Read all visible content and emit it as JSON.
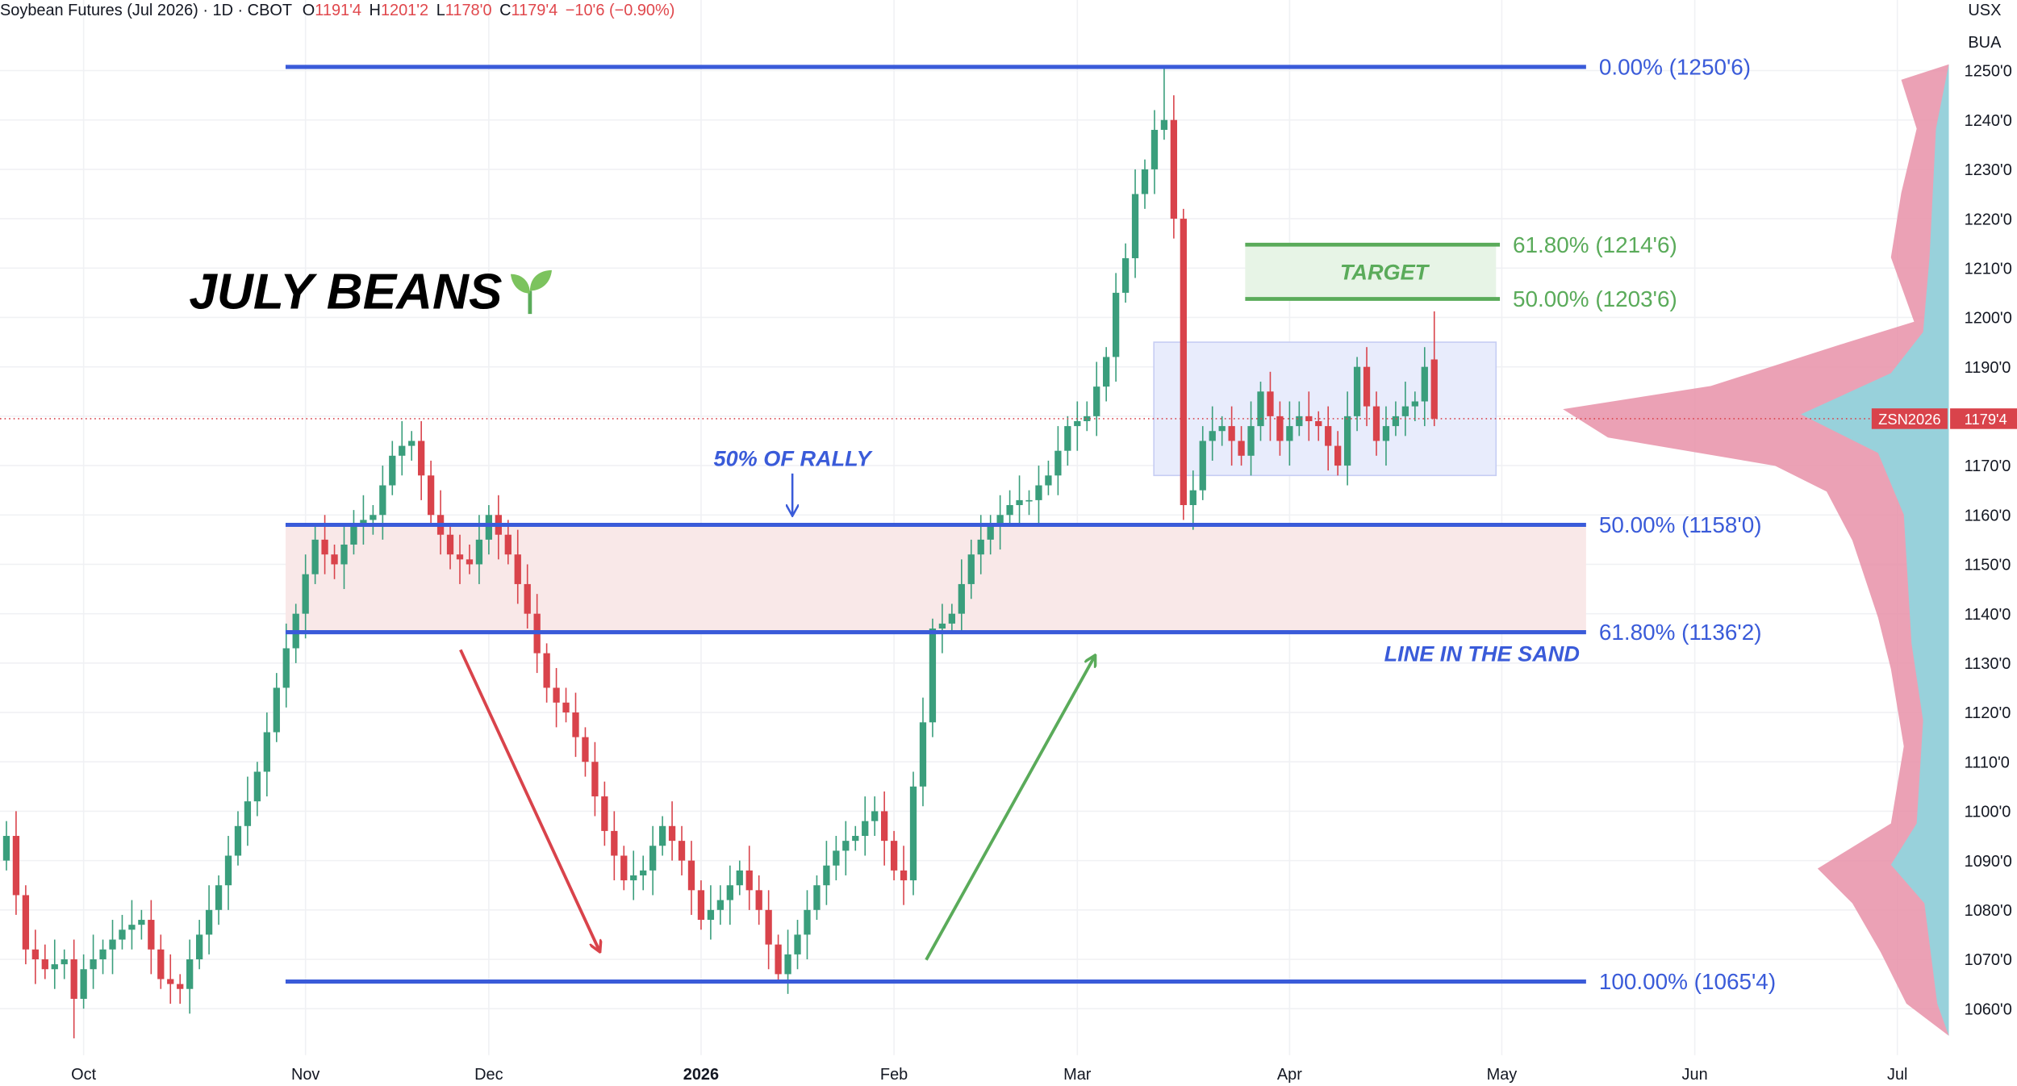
{
  "header": {
    "symbol": "Soybean Futures (Jul 2026) · 1D · CBOT",
    "open_label": "O",
    "open": "1191'4",
    "high_label": "H",
    "high": "1201'2",
    "low_label": "L",
    "low": "1178'0",
    "close_label": "C",
    "close": "1179'4",
    "change": "−10'6 (−0.90%)",
    "currency": "USX",
    "badge": "BUA"
  },
  "chart_data": {
    "type": "candlestick",
    "title": "JULY BEANS",
    "categories": [
      null,
      null,
      null,
      null,
      null,
      null,
      null,
      null,
      "Oct",
      null,
      null,
      null,
      null,
      null,
      null,
      null,
      null,
      null,
      null,
      null,
      null,
      null,
      null,
      null,
      null,
      null,
      null,
      null,
      null,
      null,
      null,
      "Nov",
      null,
      null,
      null,
      null,
      null,
      null,
      null,
      null,
      null,
      null,
      null,
      null,
      null,
      null,
      null,
      null,
      null,
      null,
      "Dec",
      null,
      null,
      null,
      null,
      null,
      null,
      null,
      null,
      null,
      null,
      null,
      null,
      null,
      null,
      null,
      null,
      null,
      null,
      null,
      null,
      null,
      "2026",
      null,
      null,
      null,
      null,
      null,
      null,
      null,
      null,
      null,
      null,
      null,
      null,
      null,
      null,
      null,
      null,
      null,
      null,
      null,
      "Feb",
      null,
      null,
      null,
      null,
      null,
      null,
      null,
      null,
      null,
      null,
      null,
      null,
      null,
      null,
      null,
      null,
      null,
      null,
      "Mar",
      null,
      null,
      null,
      null,
      null,
      null,
      null,
      null,
      null,
      null,
      null,
      null,
      null,
      null,
      null,
      null,
      null,
      null,
      null,
      null,
      null,
      "Apr",
      null,
      null,
      null,
      null,
      null,
      null,
      null,
      null,
      null,
      null,
      null,
      null,
      null,
      null,
      null,
      null,
      null,
      null,
      null,
      null,
      null,
      "May",
      null,
      null,
      null,
      null,
      null,
      null,
      null,
      null,
      null,
      null,
      null,
      null,
      null,
      null,
      null,
      null,
      null,
      null,
      null,
      "Jun",
      null,
      null,
      null,
      null,
      null,
      null,
      null,
      null,
      null,
      null,
      null,
      null,
      null,
      null,
      null,
      null,
      null,
      null,
      null,
      null,
      "Jul",
      null,
      null,
      null,
      null,
      null
    ],
    "open": [
      1090,
      1095,
      1083,
      1072,
      1070,
      1068,
      1069,
      1070,
      1062,
      1068,
      1070,
      1072,
      1074,
      1076,
      1077,
      1078,
      1072,
      1066,
      1065,
      1064,
      1070,
      1075,
      1080,
      1085,
      1091,
      1097,
      1102,
      1108,
      1116,
      1125,
      1133,
      1140,
      1148,
      1155,
      1152,
      1150,
      1154,
      1158,
      1159,
      1160,
      1166,
      1172,
      1174,
      1175,
      1168,
      1160,
      1156,
      1152,
      1151,
      1150,
      1155,
      1160,
      1156,
      1152,
      1146,
      1140,
      1132,
      1125,
      1122,
      1120,
      1115,
      1110,
      1103,
      1096,
      1091,
      1086,
      1087,
      1088,
      1093,
      1097,
      1094,
      1090,
      1084,
      1078,
      1080,
      1082,
      1085,
      1088,
      1084,
      1080,
      1073,
      1067,
      1071,
      1075,
      1080,
      1085,
      1089,
      1092,
      1094,
      1095,
      1098,
      1100,
      1094,
      1088,
      1086,
      1105,
      1118,
      1137,
      1138,
      1140,
      1146,
      1152,
      1155,
      1158,
      1160,
      1162,
      1163,
      1163,
      1166,
      1168,
      1173,
      1178,
      1179,
      1180,
      1186,
      1192,
      1205,
      1212,
      1225,
      1230,
      1238,
      1240,
      1220,
      1162,
      1165,
      1175,
      1177,
      1178,
      1175,
      1172,
      1178,
      1185,
      1180,
      1175,
      1178,
      1180,
      1179,
      1178,
      1174,
      1170,
      1180,
      1190,
      1182,
      1175,
      1178,
      1180,
      1182,
      1183,
      1191.5,
      null,
      null,
      null,
      null,
      null,
      null,
      null,
      null,
      null,
      null,
      null,
      null,
      null,
      null,
      null,
      null,
      null,
      null,
      null,
      null,
      null,
      null,
      null,
      null,
      null,
      null,
      null,
      null,
      null,
      null,
      null,
      null,
      null,
      null,
      null,
      null,
      null,
      null,
      null,
      null,
      null,
      null,
      null,
      null,
      null,
      null,
      null,
      null,
      null,
      null,
      null,
      null,
      null
    ],
    "high": [
      1098,
      1100,
      1085,
      1076,
      1073,
      1074,
      1072,
      1074,
      1071,
      1075,
      1074,
      1078,
      1079,
      1082,
      1080,
      1082,
      1075,
      1071,
      1067,
      1074,
      1078,
      1085,
      1087,
      1095,
      1100,
      1107,
      1110,
      1120,
      1128,
      1138,
      1142,
      1152,
      1158,
      1160,
      1154,
      1158,
      1161,
      1164,
      1162,
      1170,
      1175,
      1179,
      1177,
      1179,
      1171,
      1165,
      1158,
      1156,
      1154,
      1160,
      1162,
      1164,
      1159,
      1157,
      1150,
      1144,
      1134,
      1129,
      1125,
      1124,
      1117,
      1114,
      1106,
      1100,
      1093,
      1092,
      1091,
      1097,
      1099,
      1102,
      1097,
      1094,
      1086,
      1085,
      1085,
      1089,
      1090,
      1093,
      1087,
      1084,
      1075,
      1076,
      1078,
      1084,
      1087,
      1094,
      1095,
      1098,
      1097,
      1103,
      1103,
      1104,
      1096,
      1093,
      1108,
      1123,
      1139,
      1142,
      1142,
      1151,
      1155,
      1160,
      1160,
      1164,
      1165,
      1168,
      1165,
      1170,
      1171,
      1178,
      1180,
      1183,
      1183,
      1191,
      1194,
      1209,
      1215,
      1230,
      1232,
      1242,
      1250.75,
      1245,
      1222,
      1169,
      1178,
      1182,
      1180,
      1182,
      1178,
      1183,
      1187,
      1189,
      1183,
      1183,
      1183,
      1185,
      1181,
      1182,
      1177,
      1185,
      1192,
      1194,
      1185,
      1182,
      1183,
      1187,
      1185,
      1194,
      1201.25,
      null,
      null,
      null,
      null,
      null,
      null,
      null,
      null,
      null,
      null,
      null,
      null,
      null,
      null,
      null,
      null,
      null,
      null,
      null,
      null,
      null,
      null,
      null,
      null,
      null,
      null,
      null,
      null,
      null,
      null,
      null,
      null,
      null,
      null,
      null,
      null,
      null,
      null,
      null,
      null,
      null,
      null,
      null,
      null,
      null,
      null,
      null,
      null,
      null,
      null,
      null,
      null,
      null
    ],
    "low": [
      1088,
      1079,
      1069,
      1065,
      1066,
      1064,
      1066,
      1054,
      1060,
      1064,
      1067,
      1067,
      1072,
      1072,
      1074,
      1067,
      1064,
      1061,
      1061,
      1059,
      1068,
      1071,
      1077,
      1080,
      1089,
      1093,
      1099,
      1103,
      1114,
      1121,
      1130,
      1135,
      1146,
      1148,
      1147,
      1145,
      1152,
      1154,
      1156,
      1155,
      1164,
      1168,
      1171,
      1163,
      1158,
      1152,
      1149,
      1146,
      1148,
      1146,
      1152,
      1151,
      1150,
      1142,
      1137,
      1128,
      1122,
      1117,
      1118,
      1111,
      1107,
      1099,
      1093,
      1086,
      1084,
      1082,
      1084,
      1083,
      1091,
      1090,
      1087,
      1079,
      1076,
      1074,
      1077,
      1077,
      1083,
      1080,
      1077,
      1068,
      1065.5,
      1063,
      1068,
      1070,
      1078,
      1081,
      1086,
      1087,
      1092,
      1091,
      1095,
      1089,
      1086,
      1081,
      1083,
      1101,
      1115,
      1132,
      1136,
      1136,
      1143,
      1148,
      1152,
      1153,
      1158,
      1158,
      1160,
      1158,
      1164,
      1164,
      1170,
      1173,
      1177,
      1176,
      1183,
      1187,
      1203,
      1208,
      1222,
      1225,
      1236,
      1216,
      1159,
      1157,
      1163,
      1171,
      1174,
      1170,
      1170,
      1168,
      1175,
      1175,
      1172,
      1170,
      1176,
      1175,
      1175,
      1169,
      1168,
      1166,
      1177,
      1178,
      1172,
      1170,
      1176,
      1176,
      1179,
      1178,
      1178,
      null,
      null,
      null,
      null,
      null,
      null,
      null,
      null,
      null,
      null,
      null,
      null,
      null,
      null,
      null,
      null,
      null,
      null,
      null,
      null,
      null,
      null,
      null,
      null,
      null,
      null,
      null,
      null,
      null,
      null,
      null,
      null,
      null,
      null,
      null,
      null,
      null,
      null,
      null,
      null,
      null,
      null,
      null,
      null,
      null,
      null,
      null,
      null,
      null,
      null,
      null,
      null,
      null
    ],
    "close": [
      1095,
      1083,
      1072,
      1070,
      1068,
      1069,
      1070,
      1062,
      1068,
      1070,
      1072,
      1074,
      1076,
      1077,
      1078,
      1072,
      1066,
      1065,
      1064,
      1070,
      1075,
      1080,
      1085,
      1091,
      1097,
      1102,
      1108,
      1116,
      1125,
      1133,
      1140,
      1148,
      1155,
      1152,
      1150,
      1154,
      1158,
      1159,
      1160,
      1166,
      1172,
      1174,
      1175,
      1168,
      1160,
      1156,
      1152,
      1151,
      1150,
      1155,
      1160,
      1156,
      1152,
      1146,
      1140,
      1132,
      1125,
      1122,
      1120,
      1115,
      1110,
      1103,
      1096,
      1091,
      1086,
      1087,
      1088,
      1093,
      1097,
      1094,
      1090,
      1084,
      1078,
      1080,
      1082,
      1085,
      1088,
      1084,
      1080,
      1073,
      1067,
      1071,
      1075,
      1080,
      1085,
      1089,
      1092,
      1094,
      1095,
      1098,
      1100,
      1094,
      1088,
      1086,
      1105,
      1118,
      1137,
      1138,
      1140,
      1146,
      1152,
      1155,
      1158,
      1160,
      1162,
      1163,
      1163,
      1166,
      1168,
      1173,
      1178,
      1179,
      1180,
      1186,
      1192,
      1205,
      1212,
      1225,
      1230,
      1238,
      1240,
      1220,
      1162,
      1165,
      1175,
      1177,
      1178,
      1175,
      1172,
      1178,
      1185,
      1180,
      1175,
      1178,
      1180,
      1179,
      1178,
      1174,
      1170,
      1180,
      1190,
      1182,
      1175,
      1178,
      1180,
      1182,
      1183,
      1190,
      1179.5,
      null,
      null,
      null,
      null,
      null,
      null,
      null,
      null,
      null,
      null,
      null,
      null,
      null,
      null,
      null,
      null,
      null,
      null,
      null,
      null,
      null,
      null,
      null,
      null,
      null,
      null,
      null,
      null,
      null,
      null,
      null,
      null,
      null,
      null,
      null,
      null,
      null,
      null,
      null,
      null,
      null,
      null,
      null,
      null,
      null,
      null,
      null,
      null,
      null,
      null,
      null,
      null,
      null
    ],
    "up_color": "#3a9e7c",
    "down_color": "#d9434b",
    "ylim": [
      1050.6,
      1264.3
    ],
    "yticks": [
      {
        "value": 1060,
        "label": "1060'0"
      },
      {
        "value": 1070,
        "label": "1070'0"
      },
      {
        "value": 1080,
        "label": "1080'0"
      },
      {
        "value": 1090,
        "label": "1090'0"
      },
      {
        "value": 1100,
        "label": "1100'0"
      },
      {
        "value": 1110,
        "label": "1110'0"
      },
      {
        "value": 1120,
        "label": "1120'0"
      },
      {
        "value": 1130,
        "label": "1130'0"
      },
      {
        "value": 1140,
        "label": "1140'0"
      },
      {
        "value": 1150,
        "label": "1150'0"
      },
      {
        "value": 1160,
        "label": "1160'0"
      },
      {
        "value": 1170,
        "label": "1170'0"
      },
      {
        "value": 1180,
        "label": "1180'0"
      },
      {
        "value": 1190,
        "label": "1190'0"
      },
      {
        "value": 1200,
        "label": "1200'0"
      },
      {
        "value": 1210,
        "label": "1210'0"
      },
      {
        "value": 1220,
        "label": "1220'0"
      },
      {
        "value": 1230,
        "label": "1230'0"
      },
      {
        "value": 1240,
        "label": "1240'0"
      },
      {
        "value": 1250,
        "label": "1250'0"
      }
    ],
    "grid": true,
    "fib_color": "#3a5bd9",
    "fib_levels": [
      {
        "value": 1250.75,
        "label": "0.00% (1250'6)"
      },
      {
        "value": 1158,
        "label": "50.00% (1158'0)"
      },
      {
        "value": 1136.25,
        "label": "61.80% (1136'2)"
      },
      {
        "value": 1065.5,
        "label": "100.00% (1065'4)"
      }
    ],
    "target_color": "#5aab5a",
    "target_label": "TARGET",
    "target_levels": [
      {
        "value": 1214.75,
        "label": "61.80% (1214'6)"
      },
      {
        "value": 1203.75,
        "label": "50.00% (1203'6)"
      }
    ],
    "range_box": {
      "ylim": [
        1168,
        1195
      ]
    },
    "rally_label": "50% OF RALLY",
    "sand_label": "LINE IN THE SAND",
    "last_price": {
      "symbol": "ZSN2026",
      "value": 1179.5,
      "label": "1179'4"
    }
  }
}
